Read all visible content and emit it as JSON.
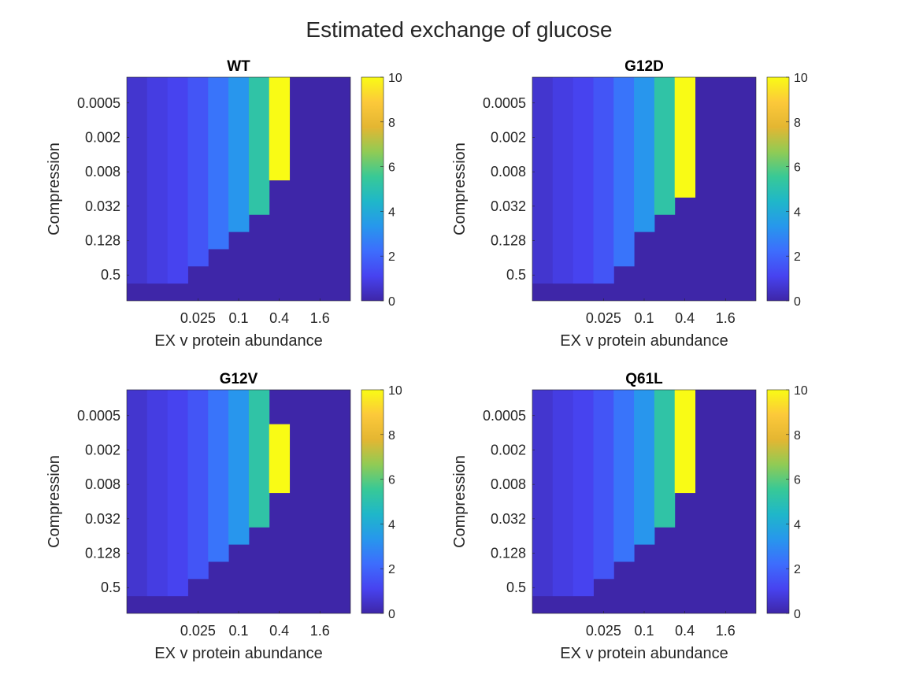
{
  "figure": {
    "title": "Estimated exchange of glucose"
  },
  "colormap": [
    "#3e26a8",
    "#4743f0",
    "#3d6dfd",
    "#2797ec",
    "#1fb7c9",
    "#38c996",
    "#91cb54",
    "#e4b632",
    "#fcc93a",
    "#f9fb15"
  ],
  "chart_data": [
    {
      "type": "heatmap",
      "title": "WT",
      "xlabel": "EX v protein abundance",
      "ylabel": "Compression",
      "x_tick_labels": [
        "0.025",
        "0.1",
        "0.4",
        "1.6"
      ],
      "y_tick_labels": [
        "0.0005",
        "0.002",
        "0.008",
        "0.032",
        "0.128",
        "0.5"
      ],
      "colorbar": {
        "range": [
          0,
          10
        ],
        "ticks": [
          0,
          2,
          4,
          6,
          8,
          10
        ]
      },
      "grid_shape": [
        13,
        11
      ],
      "cell_columns": [
        {
          "value": 0.6,
          "top_row": 0,
          "bottom_row": 12
        },
        {
          "value": 0.9,
          "top_row": 0,
          "bottom_row": 12
        },
        {
          "value": 1.1,
          "top_row": 0,
          "bottom_row": 12
        },
        {
          "value": 1.6,
          "top_row": 0,
          "bottom_row": 11
        },
        {
          "value": 2.4,
          "top_row": 0,
          "bottom_row": 10
        },
        {
          "value": 3.3,
          "top_row": 0,
          "bottom_row": 9
        },
        {
          "value": 5.2,
          "top_row": 0,
          "bottom_row": 8
        },
        {
          "value": 10,
          "top_row": 0,
          "bottom_row": 6
        }
      ]
    },
    {
      "type": "heatmap",
      "title": "G12D",
      "xlabel": "EX v protein abundance",
      "ylabel": "Compression",
      "x_tick_labels": [
        "0.025",
        "0.1",
        "0.4",
        "1.6"
      ],
      "y_tick_labels": [
        "0.0005",
        "0.002",
        "0.008",
        "0.032",
        "0.128",
        "0.5"
      ],
      "colorbar": {
        "range": [
          0,
          10
        ],
        "ticks": [
          0,
          2,
          4,
          6,
          8,
          10
        ]
      },
      "grid_shape": [
        13,
        11
      ],
      "cell_columns": [
        {
          "value": 0.6,
          "top_row": 0,
          "bottom_row": 12
        },
        {
          "value": 0.9,
          "top_row": 0,
          "bottom_row": 12
        },
        {
          "value": 1.1,
          "top_row": 0,
          "bottom_row": 12
        },
        {
          "value": 1.6,
          "top_row": 0,
          "bottom_row": 12
        },
        {
          "value": 2.4,
          "top_row": 0,
          "bottom_row": 11
        },
        {
          "value": 3.3,
          "top_row": 0,
          "bottom_row": 9
        },
        {
          "value": 5.2,
          "top_row": 0,
          "bottom_row": 8
        },
        {
          "value": 10,
          "top_row": 0,
          "bottom_row": 7
        }
      ]
    },
    {
      "type": "heatmap",
      "title": "G12V",
      "xlabel": "EX v protein abundance",
      "ylabel": "Compression",
      "x_tick_labels": [
        "0.025",
        "0.1",
        "0.4",
        "1.6"
      ],
      "y_tick_labels": [
        "0.0005",
        "0.002",
        "0.008",
        "0.032",
        "0.128",
        "0.5"
      ],
      "colorbar": {
        "range": [
          0,
          10
        ],
        "ticks": [
          0,
          2,
          4,
          6,
          8,
          10
        ]
      },
      "grid_shape": [
        13,
        11
      ],
      "cell_columns": [
        {
          "value": 0.6,
          "top_row": 0,
          "bottom_row": 12
        },
        {
          "value": 0.9,
          "top_row": 0,
          "bottom_row": 12
        },
        {
          "value": 1.1,
          "top_row": 0,
          "bottom_row": 12
        },
        {
          "value": 1.6,
          "top_row": 0,
          "bottom_row": 11
        },
        {
          "value": 2.4,
          "top_row": 0,
          "bottom_row": 10
        },
        {
          "value": 3.3,
          "top_row": 0,
          "bottom_row": 9
        },
        {
          "value": 5.2,
          "top_row": 0,
          "bottom_row": 8
        },
        {
          "value": 10,
          "top_row": 2,
          "bottom_row": 6
        }
      ]
    },
    {
      "type": "heatmap",
      "title": "Q61L",
      "xlabel": "EX v protein abundance",
      "ylabel": "Compression",
      "x_tick_labels": [
        "0.025",
        "0.1",
        "0.4",
        "1.6"
      ],
      "y_tick_labels": [
        "0.0005",
        "0.002",
        "0.008",
        "0.032",
        "0.128",
        "0.5"
      ],
      "colorbar": {
        "range": [
          0,
          10
        ],
        "ticks": [
          0,
          2,
          4,
          6,
          8,
          10
        ]
      },
      "grid_shape": [
        13,
        11
      ],
      "cell_columns": [
        {
          "value": 0.6,
          "top_row": 0,
          "bottom_row": 12
        },
        {
          "value": 0.9,
          "top_row": 0,
          "bottom_row": 12
        },
        {
          "value": 1.1,
          "top_row": 0,
          "bottom_row": 12
        },
        {
          "value": 1.6,
          "top_row": 0,
          "bottom_row": 11
        },
        {
          "value": 2.4,
          "top_row": 0,
          "bottom_row": 10
        },
        {
          "value": 3.3,
          "top_row": 0,
          "bottom_row": 9
        },
        {
          "value": 5.2,
          "top_row": 0,
          "bottom_row": 8
        },
        {
          "value": 10,
          "top_row": 0,
          "bottom_row": 6
        }
      ]
    }
  ]
}
